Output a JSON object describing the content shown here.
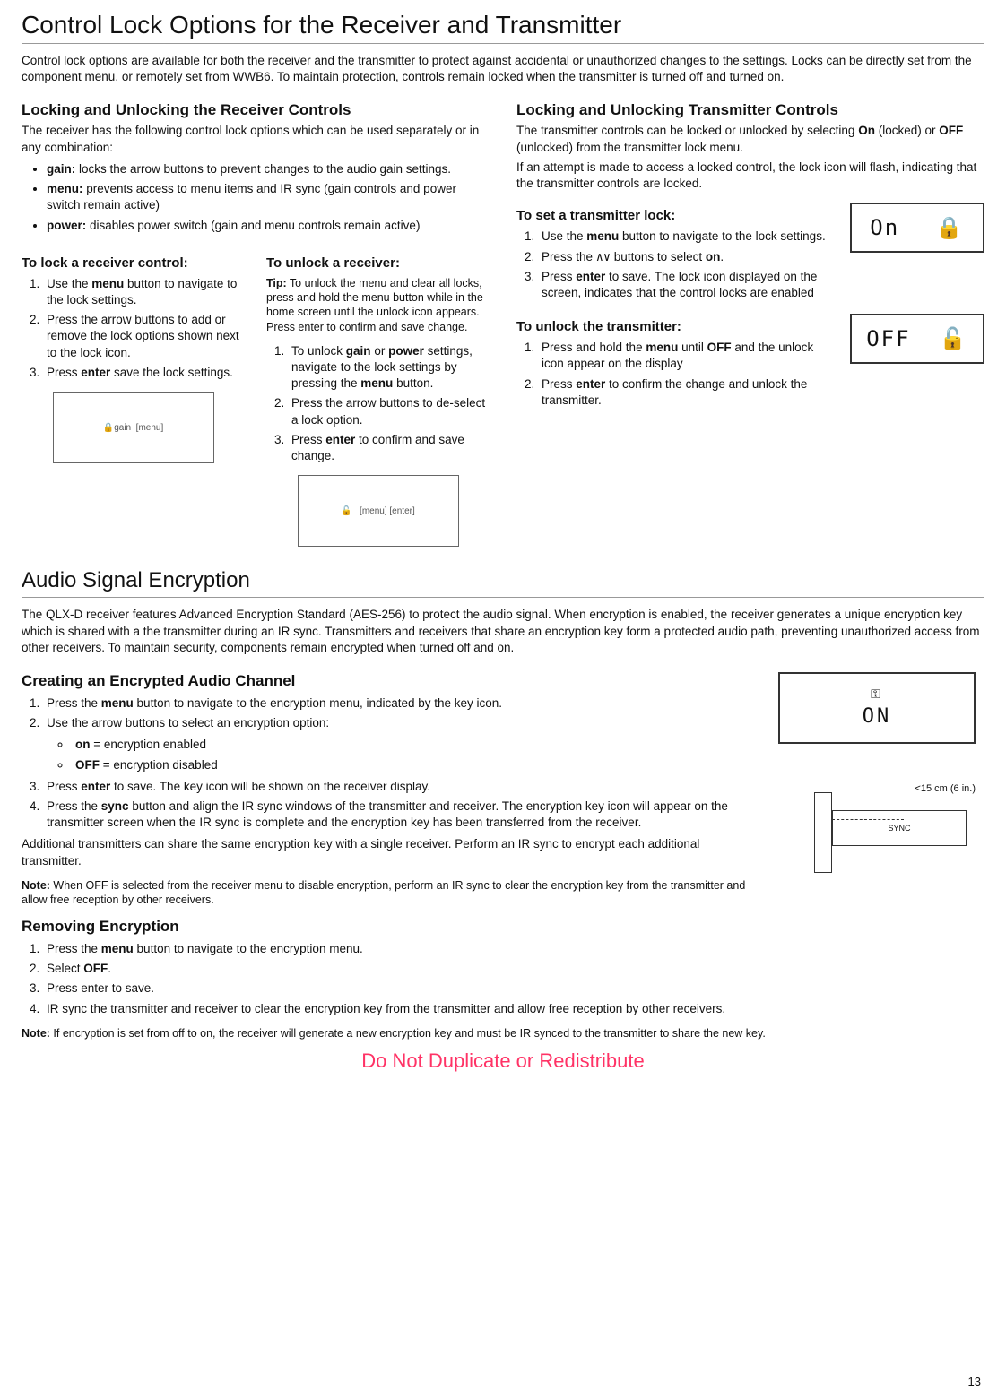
{
  "page": {
    "title": "Control Lock Options for the Receiver and Transmitter",
    "intro": "Control lock options are available for both the receiver and the transmitter to protect against accidental or unauthorized changes to the settings. Locks can be directly set from the component menu, or remotely set from WWB6. To maintain protection, controls remain locked when the transmitter is turned off and turned on.",
    "page_number": "13",
    "watermark": "Do Not Duplicate or Redistribute"
  },
  "receiver": {
    "heading": "Locking and Unlocking the Receiver Controls",
    "intro": "The receiver has the following control lock options which can be used separately or in any combination:",
    "bullet_gain_label": "gain:",
    "bullet_gain_text": " locks the arrow buttons to prevent changes to the audio gain settings.",
    "bullet_menu_label": "menu:",
    "bullet_menu_text": " prevents access to menu items and IR sync (gain controls and power switch remain active)",
    "bullet_power_label": "power:",
    "bullet_power_text": " disables power switch (gain and menu controls remain active)",
    "lock_heading": "To lock a receiver control:",
    "lock_step1_pre": "Use the ",
    "lock_step1_bold": "menu",
    "lock_step1_post": " button to navigate to the lock settings.",
    "lock_step2": "Press the arrow buttons to add or remove the lock options shown next to the lock icon.",
    "lock_step3_pre": "Press ",
    "lock_step3_bold": "enter",
    "lock_step3_post": " save the lock settings.",
    "unlock_heading": "To unlock a receiver:",
    "tip_pre": "Tip:",
    "tip_text": " To unlock the menu and clear all locks, press and hold the menu button while in the home screen until the unlock icon appears. Press enter to confirm and save change.",
    "unlock_step1_pre": "To unlock ",
    "unlock_step1_b1": "gain",
    "unlock_step1_mid": " or ",
    "unlock_step1_b2": "power",
    "unlock_step1_post": " settings, navigate to the lock settings by pressing the ",
    "unlock_step1_b3": "menu",
    "unlock_step1_end": " button.",
    "unlock_step2": "Press the arrow buttons to de-select a lock option.",
    "unlock_step3_pre": "Press ",
    "unlock_step3_bold": "enter",
    "unlock_step3_post": " to confirm and save change.",
    "diag_lock_label": "gain",
    "diag_lock_button": "menu",
    "diag_unlock_b1": "menu",
    "diag_unlock_b2": "enter"
  },
  "transmitter": {
    "heading": "Locking and Unlocking Transmitter Controls",
    "intro_pre": "The transmitter controls can be locked or unlocked by selecting ",
    "intro_b1": "On",
    "intro_mid": " (locked) or ",
    "intro_b2": "OFF",
    "intro_post": " (unlocked) from the transmitter lock menu.",
    "intro2": "If an attempt is made to access a locked control, the lock icon will flash, indicating that the transmitter controls are locked.",
    "set_heading": "To set a transmitter lock:",
    "set_step1_pre": "Use the ",
    "set_step1_bold": "menu",
    "set_step1_post": " button to navigate to the lock settings.",
    "set_step2_pre": "Press the ",
    "set_step2_arrows": "∧∨",
    "set_step2_mid": " buttons to select ",
    "set_step2_bold": "on",
    "set_step2_end": ".",
    "set_step3_pre": "Press ",
    "set_step3_bold": "enter",
    "set_step3_post": " to save. The lock icon displayed on the screen, indicates that the control locks are enabled",
    "unlock_heading": "To unlock the transmitter:",
    "unlock_step1_pre": "Press and hold the ",
    "unlock_step1_b1": "menu",
    "unlock_step1_mid": " until ",
    "unlock_step1_b2": "OFF",
    "unlock_step1_post": " and the unlock icon appear on the display",
    "unlock_step2_pre": "Press ",
    "unlock_step2_bold": "enter",
    "unlock_step2_post": " to confirm the change and unlock the transmitter.",
    "display_on": "On",
    "display_off": "OFF",
    "lock_glyph": "🔒",
    "unlock_glyph": "🔓"
  },
  "encryption": {
    "heading": "Audio Signal Encryption",
    "intro": "The QLX-D receiver features Advanced Encryption Standard (AES-256) to protect the audio signal. When encryption is enabled, the receiver generates a unique encryption key which is shared with a the transmitter during an IR sync. Transmitters and receivers that share an encryption key form a protected audio path, preventing unauthorized access from other receivers. To maintain security, components remain encrypted when turned off and on.",
    "create_heading": "Creating an Encrypted Audio Channel",
    "c_step1_pre": "Press the ",
    "c_step1_bold": "menu",
    "c_step1_post": " button to navigate to the encryption menu, indicated by the key icon.",
    "c_step2": "Use the arrow buttons to select an encryption option:",
    "c_opt_on_label": "on",
    "c_opt_on_text": " = encryption enabled",
    "c_opt_off_label": "OFF",
    "c_opt_off_text": " = encryption disabled",
    "c_step3_pre": "Press ",
    "c_step3_bold": "enter",
    "c_step3_post": " to save. The key icon will be shown on the receiver display.",
    "c_step4_pre": "Press the ",
    "c_step4_bold": "sync",
    "c_step4_post": " button and align the IR sync windows of the transmitter and receiver. The encryption key icon will appear on the transmitter screen when the IR sync is complete and the encryption key has been transferred from the receiver.",
    "c_additional": "Additional transmitters can share the same encryption key with a single receiver. Perform an IR sync to encrypt each additional transmitter.",
    "c_note_pre": "Note:",
    "c_note_text": " When OFF is selected from the receiver menu to disable encryption, perform an IR sync to clear the encryption key from the transmitter and allow free reception by other receivers.",
    "remove_heading": "Removing Encryption",
    "r_step1_pre": "Press the ",
    "r_step1_bold": "menu",
    "r_step1_post": " button to navigate to the encryption menu.",
    "r_step2_pre": "Select ",
    "r_step2_bold": "OFF",
    "r_step2_post": ".",
    "r_step3": "Press enter to save.",
    "r_step4": "IR sync the transmitter and receiver to clear the encryption key from the transmitter and allow free reception by other receivers.",
    "r_note_pre": "Note:",
    "r_note_text": " If encryption is set from off to on, the receiver will generate a new encryption key and must be IR synced to the transmitter to share the new key.",
    "display_text": "ON",
    "key_glyph": "⚿",
    "sync_distance": "<15 cm (6 in.)",
    "sync_label": "SYNC"
  }
}
